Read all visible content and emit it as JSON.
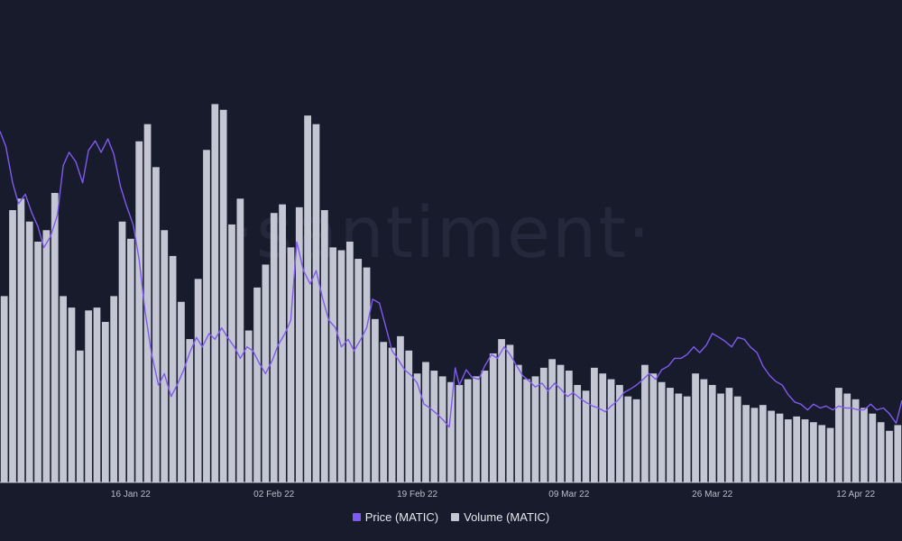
{
  "watermark": "·santiment·",
  "colors": {
    "background": "#181b2b",
    "price": "#7f5af0",
    "volume": "#c4c7d3",
    "axis": "#c8cad4"
  },
  "legend": {
    "price": "Price (MATIC)",
    "volume": "Volume (MATIC)"
  },
  "chart_data": {
    "type": "bar",
    "grid": false,
    "legend_position": "bottom-center",
    "x_tick_labels": [
      "16 Jan 22",
      "02 Feb 22",
      "19 Feb 22",
      "09 Mar 22",
      "26 Mar 22",
      "12 Apr 22"
    ],
    "x_tick_days": [
      15.5,
      32.5,
      49.5,
      67.5,
      84.5,
      101.5
    ],
    "x_range_days": [
      0,
      107
    ],
    "price_range": [
      1.15,
      3.3
    ],
    "volume_range": [
      0,
      1.4
    ],
    "series": [
      {
        "name": "Price (MATIC)",
        "kind": "line",
        "points": [
          [
            0,
            2.99
          ],
          [
            0.7,
            2.91
          ],
          [
            1.5,
            2.72
          ],
          [
            2.2,
            2.61
          ],
          [
            3,
            2.66
          ],
          [
            3.8,
            2.56
          ],
          [
            4.5,
            2.49
          ],
          [
            5.2,
            2.38
          ],
          [
            6,
            2.44
          ],
          [
            6.8,
            2.55
          ],
          [
            7.5,
            2.81
          ],
          [
            8.2,
            2.88
          ],
          [
            9,
            2.83
          ],
          [
            9.8,
            2.72
          ],
          [
            10.5,
            2.89
          ],
          [
            11.3,
            2.94
          ],
          [
            12,
            2.88
          ],
          [
            12.8,
            2.95
          ],
          [
            13.5,
            2.87
          ],
          [
            14.3,
            2.7
          ],
          [
            15,
            2.6
          ],
          [
            15.8,
            2.5
          ],
          [
            16.5,
            2.32
          ],
          [
            17.2,
            2.05
          ],
          [
            18,
            1.82
          ],
          [
            18.8,
            1.66
          ],
          [
            19.5,
            1.72
          ],
          [
            20.3,
            1.6
          ],
          [
            21,
            1.66
          ],
          [
            21.8,
            1.74
          ],
          [
            22.5,
            1.83
          ],
          [
            23.3,
            1.91
          ],
          [
            24,
            1.86
          ],
          [
            24.8,
            1.93
          ],
          [
            25.5,
            1.9
          ],
          [
            26.3,
            1.96
          ],
          [
            27,
            1.91
          ],
          [
            27.8,
            1.86
          ],
          [
            28.5,
            1.8
          ],
          [
            29.3,
            1.86
          ],
          [
            30,
            1.84
          ],
          [
            30.8,
            1.77
          ],
          [
            31.5,
            1.72
          ],
          [
            32.3,
            1.79
          ],
          [
            33,
            1.87
          ],
          [
            33.8,
            1.93
          ],
          [
            34.5,
            2.0
          ],
          [
            35.2,
            2.41
          ],
          [
            36,
            2.26
          ],
          [
            36.8,
            2.19
          ],
          [
            37.5,
            2.26
          ],
          [
            38.3,
            2.11
          ],
          [
            39,
            2.0
          ],
          [
            39.8,
            1.96
          ],
          [
            40.5,
            1.86
          ],
          [
            41.3,
            1.9
          ],
          [
            42,
            1.84
          ],
          [
            42.8,
            1.9
          ],
          [
            43.5,
            1.96
          ],
          [
            44.2,
            2.11
          ],
          [
            45,
            2.09
          ],
          [
            45.8,
            1.96
          ],
          [
            46.5,
            1.84
          ],
          [
            47.3,
            1.79
          ],
          [
            48,
            1.74
          ],
          [
            48.8,
            1.71
          ],
          [
            49.5,
            1.67
          ],
          [
            50.3,
            1.56
          ],
          [
            51,
            1.54
          ],
          [
            51.8,
            1.51
          ],
          [
            52.5,
            1.48
          ],
          [
            53.3,
            1.44
          ],
          [
            54,
            1.75
          ],
          [
            54.5,
            1.66
          ],
          [
            55.3,
            1.74
          ],
          [
            56,
            1.7
          ],
          [
            56.8,
            1.69
          ],
          [
            57.5,
            1.76
          ],
          [
            58.3,
            1.82
          ],
          [
            59,
            1.8
          ],
          [
            59.8,
            1.86
          ],
          [
            60.5,
            1.82
          ],
          [
            61.3,
            1.76
          ],
          [
            62,
            1.71
          ],
          [
            62.8,
            1.68
          ],
          [
            63.5,
            1.65
          ],
          [
            64.3,
            1.67
          ],
          [
            65,
            1.63
          ],
          [
            65.8,
            1.67
          ],
          [
            66.5,
            1.64
          ],
          [
            67.3,
            1.6
          ],
          [
            68,
            1.62
          ],
          [
            68.8,
            1.59
          ],
          [
            69.5,
            1.57
          ],
          [
            70.3,
            1.55
          ],
          [
            71,
            1.54
          ],
          [
            71.8,
            1.52
          ],
          [
            72.5,
            1.55
          ],
          [
            73.3,
            1.58
          ],
          [
            74,
            1.62
          ],
          [
            74.8,
            1.64
          ],
          [
            75.5,
            1.66
          ],
          [
            76.3,
            1.69
          ],
          [
            77,
            1.72
          ],
          [
            77.8,
            1.69
          ],
          [
            78.5,
            1.74
          ],
          [
            79.3,
            1.76
          ],
          [
            80,
            1.8
          ],
          [
            80.8,
            1.8
          ],
          [
            81.5,
            1.82
          ],
          [
            82.3,
            1.86
          ],
          [
            83,
            1.83
          ],
          [
            83.8,
            1.87
          ],
          [
            84.5,
            1.93
          ],
          [
            85.3,
            1.91
          ],
          [
            86,
            1.89
          ],
          [
            86.8,
            1.86
          ],
          [
            87.5,
            1.91
          ],
          [
            88.3,
            1.9
          ],
          [
            89,
            1.86
          ],
          [
            89.8,
            1.83
          ],
          [
            90.5,
            1.76
          ],
          [
            91.3,
            1.71
          ],
          [
            92,
            1.68
          ],
          [
            92.8,
            1.66
          ],
          [
            93.5,
            1.61
          ],
          [
            94.3,
            1.57
          ],
          [
            95,
            1.56
          ],
          [
            95.8,
            1.53
          ],
          [
            96.5,
            1.56
          ],
          [
            97.3,
            1.54
          ],
          [
            98,
            1.55
          ],
          [
            98.8,
            1.53
          ],
          [
            99.5,
            1.55
          ],
          [
            100.3,
            1.54
          ],
          [
            101,
            1.54
          ],
          [
            101.8,
            1.53
          ],
          [
            102.5,
            1.53
          ],
          [
            103.3,
            1.56
          ],
          [
            104,
            1.53
          ],
          [
            104.8,
            1.54
          ],
          [
            105.5,
            1.51
          ],
          [
            106.3,
            1.46
          ],
          [
            107,
            1.58
          ]
        ]
      },
      {
        "name": "Volume (MATIC)",
        "kind": "bar",
        "values": [
          0.65,
          0.95,
          0.99,
          0.91,
          0.84,
          0.88,
          1.01,
          0.65,
          0.61,
          0.46,
          0.6,
          0.61,
          0.56,
          0.65,
          0.91,
          0.85,
          1.19,
          1.25,
          1.1,
          0.88,
          0.79,
          0.63,
          0.5,
          0.71,
          1.16,
          1.32,
          1.3,
          0.9,
          0.99,
          0.53,
          0.68,
          0.76,
          0.94,
          0.97,
          0.82,
          0.96,
          1.28,
          1.25,
          0.95,
          0.82,
          0.81,
          0.84,
          0.78,
          0.75,
          0.57,
          0.49,
          0.47,
          0.51,
          0.46,
          0.38,
          0.42,
          0.39,
          0.37,
          0.35,
          0.34,
          0.36,
          0.37,
          0.39,
          0.45,
          0.5,
          0.48,
          0.41,
          0.36,
          0.37,
          0.4,
          0.43,
          0.41,
          0.39,
          0.34,
          0.32,
          0.4,
          0.38,
          0.36,
          0.34,
          0.3,
          0.29,
          0.41,
          0.38,
          0.35,
          0.33,
          0.31,
          0.3,
          0.38,
          0.36,
          0.34,
          0.31,
          0.33,
          0.3,
          0.27,
          0.26,
          0.27,
          0.25,
          0.24,
          0.22,
          0.23,
          0.22,
          0.21,
          0.2,
          0.19,
          0.33,
          0.31,
          0.29,
          0.26,
          0.24,
          0.21,
          0.18,
          0.2
        ]
      }
    ]
  }
}
